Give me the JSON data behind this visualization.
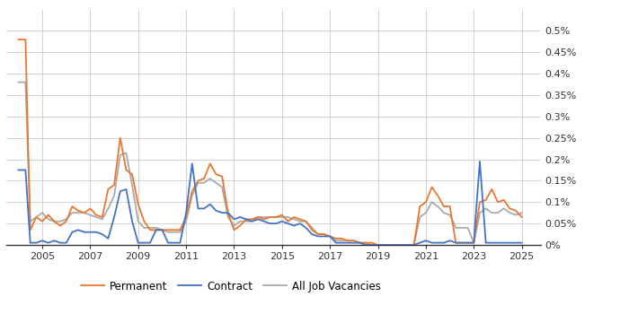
{
  "yticks": [
    0,
    0.0005,
    0.001,
    0.0015,
    0.002,
    0.0025,
    0.003,
    0.0035,
    0.004,
    0.0045,
    0.005
  ],
  "ytick_labels": [
    "0%",
    "0.05%",
    "0.1%",
    "0.15%",
    "0.2%",
    "0.25%",
    "0.3%",
    "0.35%",
    "0.4%",
    "0.45%",
    "0.5%"
  ],
  "xticks": [
    2005,
    2007,
    2009,
    2011,
    2013,
    2015,
    2017,
    2019,
    2021,
    2023,
    2025
  ],
  "xlim_start": 2003.5,
  "xlim_end": 2025.8,
  "ylim": [
    0,
    0.0055
  ],
  "legend_labels": [
    "Permanent",
    "Contract",
    "All Job Vacancies"
  ],
  "colors": {
    "permanent": "#E87830",
    "contract": "#4472C4",
    "all_vacancies": "#AAAAAA"
  },
  "line_width": 1.3,
  "grid_color": "#CCCCCC",
  "background_color": "#FFFFFF",
  "permanent": [
    [
      2004.0,
      0.0048
    ],
    [
      2004.3,
      0.0048
    ],
    [
      2004.5,
      0.00035
    ],
    [
      2004.75,
      0.00065
    ],
    [
      2005.0,
      0.00055
    ],
    [
      2005.25,
      0.0007
    ],
    [
      2005.5,
      0.00055
    ],
    [
      2005.75,
      0.00045
    ],
    [
      2006.0,
      0.00055
    ],
    [
      2006.25,
      0.0009
    ],
    [
      2006.5,
      0.0008
    ],
    [
      2006.75,
      0.00075
    ],
    [
      2007.0,
      0.00085
    ],
    [
      2007.25,
      0.0007
    ],
    [
      2007.5,
      0.00065
    ],
    [
      2007.75,
      0.0013
    ],
    [
      2008.0,
      0.0014
    ],
    [
      2008.25,
      0.0025
    ],
    [
      2008.5,
      0.00175
    ],
    [
      2008.75,
      0.00165
    ],
    [
      2009.0,
      0.00095
    ],
    [
      2009.25,
      0.00055
    ],
    [
      2009.5,
      0.00035
    ],
    [
      2009.75,
      0.00035
    ],
    [
      2010.0,
      0.00035
    ],
    [
      2010.25,
      0.00035
    ],
    [
      2010.5,
      0.00035
    ],
    [
      2010.75,
      0.00035
    ],
    [
      2011.0,
      0.00065
    ],
    [
      2011.25,
      0.00125
    ],
    [
      2011.5,
      0.0015
    ],
    [
      2011.75,
      0.00155
    ],
    [
      2012.0,
      0.0019
    ],
    [
      2012.25,
      0.00165
    ],
    [
      2012.5,
      0.0016
    ],
    [
      2012.75,
      0.00075
    ],
    [
      2013.0,
      0.00035
    ],
    [
      2013.25,
      0.00045
    ],
    [
      2013.5,
      0.0006
    ],
    [
      2013.75,
      0.0006
    ],
    [
      2014.0,
      0.00065
    ],
    [
      2014.25,
      0.0006
    ],
    [
      2014.5,
      0.00065
    ],
    [
      2014.75,
      0.00065
    ],
    [
      2015.0,
      0.0007
    ],
    [
      2015.25,
      0.00055
    ],
    [
      2015.5,
      0.00065
    ],
    [
      2015.75,
      0.0006
    ],
    [
      2016.0,
      0.00055
    ],
    [
      2016.25,
      0.00035
    ],
    [
      2016.5,
      0.00025
    ],
    [
      2016.75,
      0.00025
    ],
    [
      2017.0,
      0.0002
    ],
    [
      2017.25,
      0.00015
    ],
    [
      2017.5,
      0.00015
    ],
    [
      2017.75,
      0.0001
    ],
    [
      2018.0,
      0.0001
    ],
    [
      2018.25,
      5e-05
    ],
    [
      2018.5,
      5e-05
    ],
    [
      2018.75,
      5e-05
    ],
    [
      2019.0,
      0.0
    ],
    [
      2019.25,
      0.0
    ],
    [
      2019.5,
      0.0
    ],
    [
      2019.75,
      0.0
    ],
    [
      2020.0,
      0.0
    ],
    [
      2020.25,
      0.0
    ],
    [
      2020.5,
      0.0
    ],
    [
      2020.75,
      0.0009
    ],
    [
      2021.0,
      0.001
    ],
    [
      2021.25,
      0.00135
    ],
    [
      2021.5,
      0.00115
    ],
    [
      2021.75,
      0.0009
    ],
    [
      2022.0,
      0.0009
    ],
    [
      2022.25,
      5e-05
    ],
    [
      2022.5,
      5e-05
    ],
    [
      2022.75,
      5e-05
    ],
    [
      2023.0,
      5e-05
    ],
    [
      2023.25,
      0.001
    ],
    [
      2023.5,
      0.00105
    ],
    [
      2023.75,
      0.0013
    ],
    [
      2024.0,
      0.001
    ],
    [
      2024.25,
      0.00105
    ],
    [
      2024.5,
      0.00085
    ],
    [
      2024.75,
      0.0008
    ],
    [
      2025.0,
      0.00065
    ]
  ],
  "contract": [
    [
      2004.0,
      0.00175
    ],
    [
      2004.3,
      0.00175
    ],
    [
      2004.5,
      5e-05
    ],
    [
      2004.75,
      5e-05
    ],
    [
      2005.0,
      0.0001
    ],
    [
      2005.25,
      5e-05
    ],
    [
      2005.5,
      0.0001
    ],
    [
      2005.75,
      5e-05
    ],
    [
      2006.0,
      5e-05
    ],
    [
      2006.25,
      0.0003
    ],
    [
      2006.5,
      0.00035
    ],
    [
      2006.75,
      0.0003
    ],
    [
      2007.0,
      0.0003
    ],
    [
      2007.25,
      0.0003
    ],
    [
      2007.5,
      0.00025
    ],
    [
      2007.75,
      0.00015
    ],
    [
      2008.0,
      0.00065
    ],
    [
      2008.25,
      0.00125
    ],
    [
      2008.5,
      0.0013
    ],
    [
      2008.75,
      0.00055
    ],
    [
      2009.0,
      5e-05
    ],
    [
      2009.25,
      5e-05
    ],
    [
      2009.5,
      5e-05
    ],
    [
      2009.75,
      0.00035
    ],
    [
      2010.0,
      0.00035
    ],
    [
      2010.25,
      5e-05
    ],
    [
      2010.5,
      5e-05
    ],
    [
      2010.75,
      5e-05
    ],
    [
      2011.0,
      0.00075
    ],
    [
      2011.25,
      0.0019
    ],
    [
      2011.5,
      0.00085
    ],
    [
      2011.75,
      0.00085
    ],
    [
      2012.0,
      0.00095
    ],
    [
      2012.25,
      0.0008
    ],
    [
      2012.5,
      0.00075
    ],
    [
      2012.75,
      0.00075
    ],
    [
      2013.0,
      0.0006
    ],
    [
      2013.25,
      0.00065
    ],
    [
      2013.5,
      0.0006
    ],
    [
      2013.75,
      0.00055
    ],
    [
      2014.0,
      0.0006
    ],
    [
      2014.25,
      0.00055
    ],
    [
      2014.5,
      0.0005
    ],
    [
      2014.75,
      0.0005
    ],
    [
      2015.0,
      0.00055
    ],
    [
      2015.25,
      0.0005
    ],
    [
      2015.5,
      0.00045
    ],
    [
      2015.75,
      0.0005
    ],
    [
      2016.0,
      0.0004
    ],
    [
      2016.25,
      0.00025
    ],
    [
      2016.5,
      0.0002
    ],
    [
      2016.75,
      0.0002
    ],
    [
      2017.0,
      0.0002
    ],
    [
      2017.25,
      5e-05
    ],
    [
      2017.5,
      5e-05
    ],
    [
      2017.75,
      5e-05
    ],
    [
      2018.0,
      5e-05
    ],
    [
      2018.25,
      5e-05
    ],
    [
      2018.5,
      0.0
    ],
    [
      2018.75,
      0.0
    ],
    [
      2019.0,
      0.0
    ],
    [
      2019.25,
      0.0
    ],
    [
      2019.5,
      0.0
    ],
    [
      2019.75,
      0.0
    ],
    [
      2020.0,
      0.0
    ],
    [
      2020.25,
      0.0
    ],
    [
      2020.5,
      0.0
    ],
    [
      2020.75,
      5e-05
    ],
    [
      2021.0,
      0.0001
    ],
    [
      2021.25,
      5e-05
    ],
    [
      2021.5,
      5e-05
    ],
    [
      2021.75,
      5e-05
    ],
    [
      2022.0,
      0.0001
    ],
    [
      2022.25,
      5e-05
    ],
    [
      2022.5,
      5e-05
    ],
    [
      2022.75,
      5e-05
    ],
    [
      2023.0,
      5e-05
    ],
    [
      2023.25,
      0.00195
    ],
    [
      2023.5,
      5e-05
    ],
    [
      2023.75,
      5e-05
    ],
    [
      2024.0,
      5e-05
    ],
    [
      2024.25,
      5e-05
    ],
    [
      2024.5,
      5e-05
    ],
    [
      2024.75,
      5e-05
    ],
    [
      2025.0,
      5e-05
    ]
  ],
  "all_vacancies": [
    [
      2004.0,
      0.0038
    ],
    [
      2004.3,
      0.0038
    ],
    [
      2004.5,
      0.00055
    ],
    [
      2004.75,
      0.00065
    ],
    [
      2005.0,
      0.00075
    ],
    [
      2005.25,
      0.0006
    ],
    [
      2005.5,
      0.00055
    ],
    [
      2005.75,
      0.00055
    ],
    [
      2006.0,
      0.0006
    ],
    [
      2006.25,
      0.00075
    ],
    [
      2006.5,
      0.00075
    ],
    [
      2006.75,
      0.00075
    ],
    [
      2007.0,
      0.0007
    ],
    [
      2007.25,
      0.00065
    ],
    [
      2007.5,
      0.0006
    ],
    [
      2007.75,
      0.00085
    ],
    [
      2008.0,
      0.00115
    ],
    [
      2008.25,
      0.0021
    ],
    [
      2008.5,
      0.00215
    ],
    [
      2008.75,
      0.0014
    ],
    [
      2009.0,
      0.00055
    ],
    [
      2009.25,
      0.0004
    ],
    [
      2009.5,
      0.0004
    ],
    [
      2009.75,
      0.0004
    ],
    [
      2010.0,
      0.00035
    ],
    [
      2010.25,
      0.0003
    ],
    [
      2010.5,
      0.0003
    ],
    [
      2010.75,
      0.0003
    ],
    [
      2011.0,
      0.00055
    ],
    [
      2011.25,
      0.00115
    ],
    [
      2011.5,
      0.00145
    ],
    [
      2011.75,
      0.00145
    ],
    [
      2012.0,
      0.00155
    ],
    [
      2012.25,
      0.00145
    ],
    [
      2012.5,
      0.00135
    ],
    [
      2012.75,
      0.00065
    ],
    [
      2013.0,
      0.00045
    ],
    [
      2013.25,
      0.00055
    ],
    [
      2013.5,
      0.00055
    ],
    [
      2013.75,
      0.00055
    ],
    [
      2014.0,
      0.00065
    ],
    [
      2014.25,
      0.00065
    ],
    [
      2014.5,
      0.00065
    ],
    [
      2014.75,
      0.00065
    ],
    [
      2015.0,
      0.00065
    ],
    [
      2015.25,
      0.00065
    ],
    [
      2015.5,
      0.0006
    ],
    [
      2015.75,
      0.00055
    ],
    [
      2016.0,
      0.00055
    ],
    [
      2016.25,
      0.0004
    ],
    [
      2016.5,
      0.00025
    ],
    [
      2016.75,
      0.00025
    ],
    [
      2017.0,
      0.0002
    ],
    [
      2017.25,
      0.0001
    ],
    [
      2017.5,
      0.0001
    ],
    [
      2017.75,
      0.0001
    ],
    [
      2018.0,
      0.0001
    ],
    [
      2018.25,
      5e-05
    ],
    [
      2018.5,
      5e-05
    ],
    [
      2018.75,
      0.0
    ],
    [
      2019.0,
      0.0
    ],
    [
      2019.25,
      0.0
    ],
    [
      2019.5,
      0.0
    ],
    [
      2019.75,
      0.0
    ],
    [
      2020.0,
      0.0
    ],
    [
      2020.25,
      0.0
    ],
    [
      2020.5,
      0.0
    ],
    [
      2020.75,
      0.00065
    ],
    [
      2021.0,
      0.00075
    ],
    [
      2021.25,
      0.001
    ],
    [
      2021.5,
      0.0009
    ],
    [
      2021.75,
      0.00075
    ],
    [
      2022.0,
      0.0007
    ],
    [
      2022.25,
      0.0004
    ],
    [
      2022.5,
      0.0004
    ],
    [
      2022.75,
      0.0004
    ],
    [
      2023.0,
      5e-05
    ],
    [
      2023.25,
      0.00075
    ],
    [
      2023.5,
      0.00085
    ],
    [
      2023.75,
      0.00075
    ],
    [
      2024.0,
      0.00075
    ],
    [
      2024.25,
      0.00085
    ],
    [
      2024.5,
      0.00075
    ],
    [
      2024.75,
      0.0007
    ],
    [
      2025.0,
      0.00075
    ]
  ]
}
